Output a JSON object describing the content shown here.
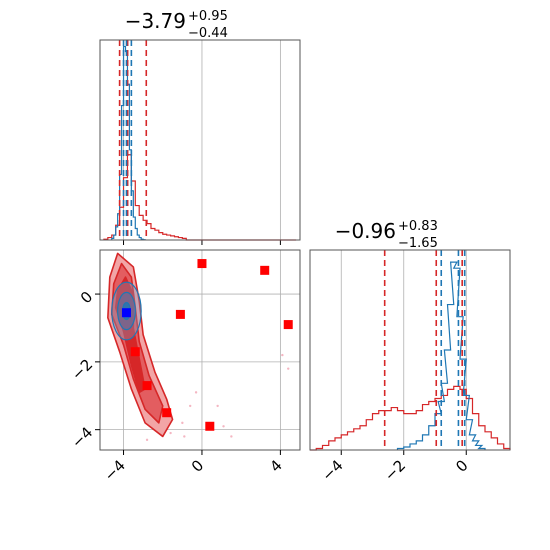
{
  "colors": {
    "red": "#d62728",
    "blue": "#1f77b4",
    "marker_red": "#ff0000",
    "marker_blue": "#0000ff",
    "grid": "#b0b0b0",
    "frame": "#555555"
  },
  "chart_data": {
    "type": "corner",
    "grid": true,
    "panels": [
      {
        "id": "marginal-1",
        "type": "histogram",
        "title": {
          "value": "−3.79",
          "upper": "+0.95",
          "lower": "−0.44"
        },
        "xlim": [
          -5.2,
          5.0
        ],
        "xticks": [
          -4,
          0,
          4
        ],
        "red_quantiles": [
          -4.2,
          -3.79,
          -2.84
        ],
        "blue_quantiles": [
          -4.0,
          -3.85,
          -3.6
        ],
        "series": [
          {
            "name": "",
            "color": "red",
            "x": [
              -5.0,
              -4.8,
              -4.6,
              -4.4,
              -4.2,
              -4.0,
              -3.8,
              -3.6,
              -3.4,
              -3.2,
              -3.0,
              -2.8,
              -2.6,
              -2.4,
              -2.2,
              -2.0,
              -1.8,
              -1.6,
              -1.4,
              -1.2,
              -1.0,
              -0.8,
              -0.6,
              -0.4,
              -0.2,
              0.0,
              0.2,
              0.4,
              0.6,
              0.8,
              1.0,
              1.2,
              1.4,
              1.6,
              1.8,
              2.0,
              2.2,
              2.4,
              2.6,
              2.8,
              3.0,
              3.2,
              3.4,
              3.6,
              3.8,
              4.0,
              4.2,
              4.4,
              4.6
            ],
            "values": [
              0.5,
              1.5,
              3,
              9,
              20,
              38,
              52,
              36,
              21,
              15,
              12,
              10,
              7,
              6,
              4.5,
              3.5,
              3,
              2.5,
              2,
              1.5,
              1,
              0,
              0,
              0,
              0,
              0,
              0,
              0,
              0,
              0,
              0,
              0,
              0,
              0,
              0,
              0,
              0,
              0,
              0,
              0,
              0,
              0,
              0,
              0,
              0,
              0,
              0,
              0,
              0
            ]
          },
          {
            "name": "",
            "color": "blue",
            "x": [
              -4.6,
              -4.5,
              -4.4,
              -4.3,
              -4.2,
              -4.1,
              -4.0,
              -3.9,
              -3.8,
              -3.7,
              -3.6,
              -3.5,
              -3.4,
              -3.3,
              -3.2,
              -3.1,
              -3.0
            ],
            "values": [
              1,
              3,
              8,
              16,
              40,
              82,
              118,
              115,
              95,
              55,
              30,
              14,
              7,
              3,
              1.5,
              0.5,
              0.2
            ]
          }
        ],
        "ymax": 122
      },
      {
        "id": "joint",
        "type": "contour_scatter",
        "xlim": [
          -5.2,
          5.0
        ],
        "ylim": [
          -4.6,
          1.3
        ],
        "xticks": [
          -4,
          0,
          4
        ],
        "yticks": [
          0,
          -2,
          -4
        ],
        "contour_levels": [
          {
            "color": "#f2a5a6",
            "points": [
              [
                -4.7,
                0.5
              ],
              [
                -4.3,
                1.2
              ],
              [
                -3.5,
                0.8
              ],
              [
                -3.2,
                -0.2
              ],
              [
                -3.0,
                -1.2
              ],
              [
                -2.4,
                -2.3
              ],
              [
                -1.8,
                -3.1
              ],
              [
                -1.5,
                -3.7
              ],
              [
                -2.0,
                -4.2
              ],
              [
                -2.9,
                -3.8
              ],
              [
                -3.6,
                -2.8
              ],
              [
                -4.2,
                -1.7
              ],
              [
                -4.8,
                -0.7
              ]
            ]
          },
          {
            "color": "#e35d60",
            "points": [
              [
                -4.5,
                0.3
              ],
              [
                -4.1,
                0.9
              ],
              [
                -3.6,
                0.5
              ],
              [
                -3.4,
                -0.4
              ],
              [
                -3.2,
                -1.4
              ],
              [
                -2.7,
                -2.4
              ],
              [
                -2.0,
                -3.3
              ],
              [
                -2.2,
                -3.8
              ],
              [
                -2.9,
                -3.4
              ],
              [
                -3.5,
                -2.5
              ],
              [
                -4.0,
                -1.5
              ],
              [
                -4.6,
                -0.6
              ]
            ]
          },
          {
            "color": "#d62728",
            "points": [
              [
                -4.3,
                0.1
              ],
              [
                -3.9,
                0.5
              ],
              [
                -3.5,
                0.0
              ],
              [
                -3.5,
                -1.0
              ],
              [
                -3.2,
                -1.9
              ],
              [
                -2.9,
                -2.8
              ],
              [
                -3.2,
                -2.9
              ],
              [
                -3.6,
                -2.1
              ],
              [
                -4.0,
                -1.1
              ],
              [
                -4.4,
                -0.4
              ]
            ]
          }
        ],
        "blue_contours": [
          {
            "cx": -3.85,
            "cy": -0.5,
            "rx": 0.75,
            "ry": 0.85
          },
          {
            "cx": -3.85,
            "cy": -0.5,
            "rx": 0.45,
            "ry": 0.55
          },
          {
            "cx": -3.85,
            "cy": -0.5,
            "rx": 0.2,
            "ry": 0.25
          }
        ],
        "red_markers": [
          [
            0.0,
            0.9
          ],
          [
            3.2,
            0.7
          ],
          [
            4.4,
            -0.9
          ],
          [
            -1.1,
            -0.6
          ],
          [
            -3.4,
            -1.7
          ],
          [
            -2.8,
            -2.7
          ],
          [
            -1.8,
            -3.5
          ],
          [
            0.4,
            -3.9
          ]
        ],
        "blue_marker": [
          -3.85,
          -0.55
        ],
        "faint_points": [
          [
            -2.2,
            -3.6
          ],
          [
            -1.6,
            -4.1
          ],
          [
            -0.6,
            -3.3
          ],
          [
            -0.9,
            -4.2
          ],
          [
            1.1,
            -3.9
          ],
          [
            1.5,
            -4.2
          ],
          [
            4.1,
            -1.8
          ],
          [
            4.4,
            -2.2
          ],
          [
            -2.8,
            -4.3
          ],
          [
            -0.3,
            -2.9
          ],
          [
            0.8,
            -3.3
          ],
          [
            -1.0,
            -3.8
          ]
        ]
      },
      {
        "id": "marginal-2",
        "type": "histogram",
        "title": {
          "value": "−0.96",
          "upper": "+0.83",
          "lower": "−1.65"
        },
        "xlim": [
          -5.0,
          1.4
        ],
        "xticks": [
          -4,
          -2,
          0
        ],
        "red_quantiles": [
          -2.61,
          -0.96,
          -0.13
        ],
        "blue_quantiles": [
          -0.8,
          -0.25,
          -0.05
        ],
        "series": [
          {
            "name": "",
            "color": "red",
            "x": [
              -5.0,
              -4.8,
              -4.6,
              -4.4,
              -4.2,
              -4.0,
              -3.8,
              -3.6,
              -3.4,
              -3.2,
              -3.0,
              -2.8,
              -2.6,
              -2.4,
              -2.2,
              -2.0,
              -1.8,
              -1.6,
              -1.4,
              -1.2,
              -1.0,
              -0.8,
              -0.6,
              -0.4,
              -0.2,
              0.0,
              0.2,
              0.4,
              0.6,
              0.8,
              1.0,
              1.2
            ],
            "values": [
              0,
              0.5,
              1.5,
              3,
              4,
              5,
              6,
              7,
              8,
              10,
              12,
              13,
              13,
              14,
              13,
              12,
              12,
              13,
              15,
              16,
              17,
              18,
              20,
              21,
              20,
              17,
              12,
              8,
              6,
              4,
              2,
              0.5
            ]
          },
          {
            "name": "",
            "color": "blue",
            "x": [
              -2.2,
              -2.0,
              -1.8,
              -1.6,
              -1.4,
              -1.2,
              -1.0,
              -0.9,
              -0.8,
              -0.7,
              -0.6,
              -0.5,
              -0.4,
              -0.3,
              -0.2,
              -0.1,
              0.0,
              0.1,
              0.2,
              0.3,
              0.4
            ],
            "values": [
              0.5,
              1,
              2,
              3,
              5,
              8,
              12,
              16,
              22,
              33,
              48,
              62,
              60,
              44,
              30,
              18,
              10,
              5,
              3,
              1.5,
              0.5
            ]
          }
        ],
        "ymax": 66
      }
    ]
  }
}
